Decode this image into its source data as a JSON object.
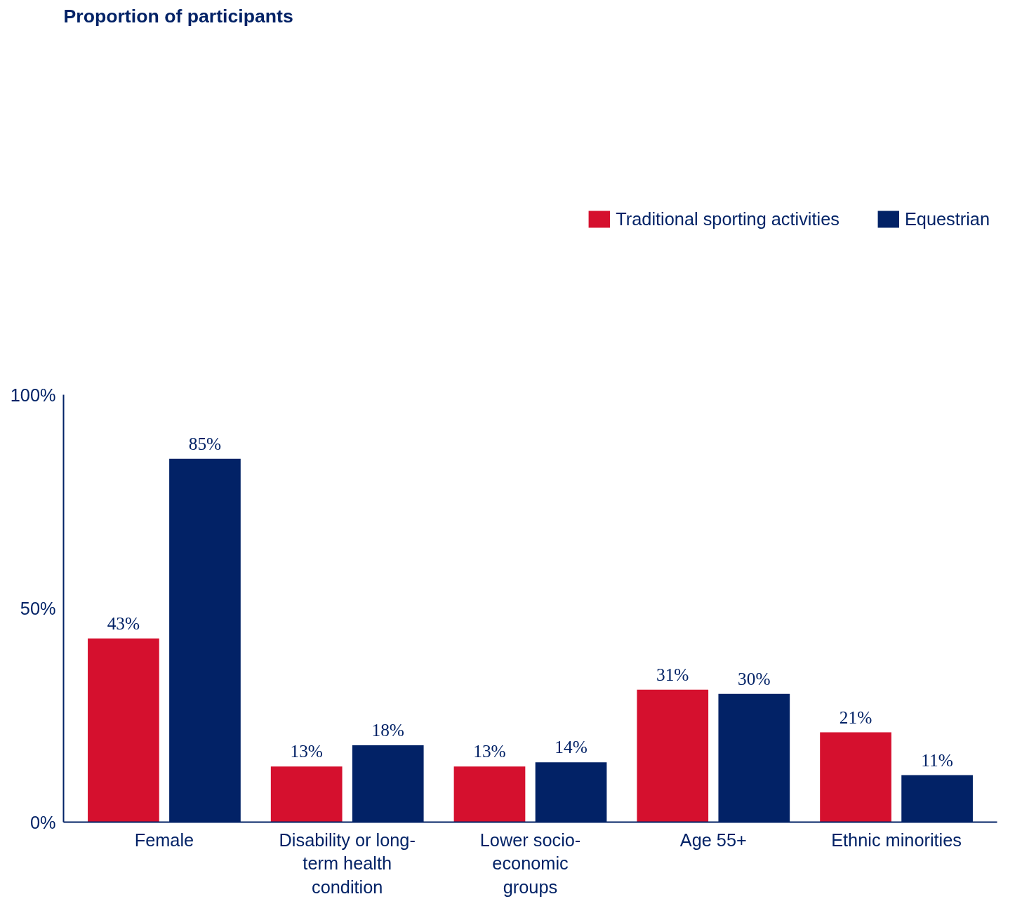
{
  "chart_data": {
    "type": "bar",
    "title": "Proportion of participants",
    "categories": [
      "Female",
      "Disability or long-\nterm health\ncondition",
      "Lower socio-\neconomic\ngroups",
      "Age 55+",
      "Ethnic minorities"
    ],
    "series": [
      {
        "name": "Traditional sporting activities",
        "color": "#d5102e",
        "values": [
          43,
          13,
          13,
          31,
          21
        ],
        "value_labels": [
          "43%",
          "13%",
          "13%",
          "31%",
          "21%"
        ]
      },
      {
        "name": "Equestrian",
        "color": "#022266",
        "values": [
          85,
          18,
          14,
          30,
          11
        ],
        "value_labels": [
          "85%",
          "18%",
          "14%",
          "30%",
          "11%"
        ]
      }
    ],
    "ylim": [
      0,
      100
    ],
    "yticks": [
      {
        "value": 0,
        "label": "0%"
      },
      {
        "value": 50,
        "label": "50%"
      },
      {
        "value": 100,
        "label": "100%"
      }
    ],
    "grid": false,
    "legend": "top"
  }
}
